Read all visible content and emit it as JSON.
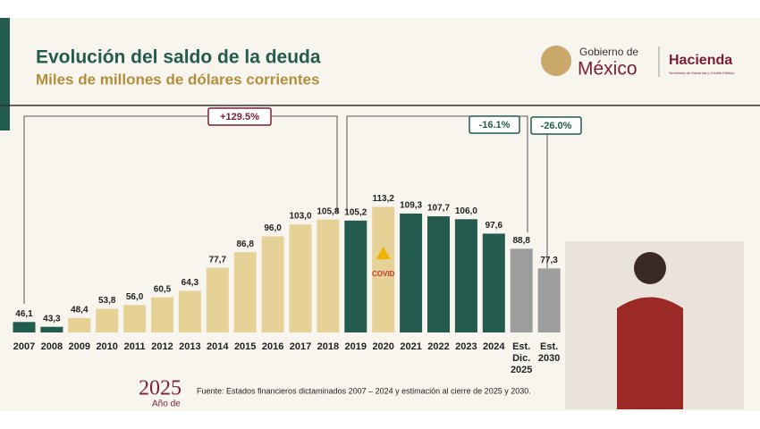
{
  "chart_data": {
    "type": "bar",
    "title": "Evolución del saldo de la deuda",
    "subtitle": "Miles de millones de dólares corrientes",
    "categories": [
      "2007",
      "2008",
      "2009",
      "2010",
      "2011",
      "2012",
      "2013",
      "2014",
      "2015",
      "2016",
      "2017",
      "2018",
      "2019",
      "2020",
      "2021",
      "2022",
      "2023",
      "2024",
      "Est. Dic. 2025",
      "Est. 2030"
    ],
    "values": [
      46.1,
      43.3,
      48.4,
      53.8,
      56.0,
      60.5,
      64.3,
      77.7,
      86.8,
      96.0,
      103.0,
      105.8,
      105.2,
      113.2,
      109.3,
      107.7,
      106.0,
      97.6,
      88.8,
      77.3
    ],
    "value_labels": [
      "46,1",
      "43,3",
      "48,4",
      "53,8",
      "56,0",
      "60,5",
      "64,3",
      "77,7",
      "86,8",
      "96,0",
      "103,0",
      "105,8",
      "105,2",
      "113,2",
      "109,3",
      "107,7",
      "106,0",
      "97,6",
      "88,8",
      "77,3"
    ],
    "colors": [
      "#235b4e",
      "#235b4e",
      "#e6d197",
      "#e6d197",
      "#e6d197",
      "#e6d197",
      "#e6d197",
      "#e6d197",
      "#e6d197",
      "#e6d197",
      "#e6d197",
      "#e6d197",
      "#235b4e",
      "#e6d197",
      "#235b4e",
      "#235b4e",
      "#235b4e",
      "#235b4e",
      "#9d9d9d",
      "#9d9d9d"
    ],
    "ylim": [
      40,
      115
    ],
    "annotations": [
      "+129.5%",
      "-16.1%",
      "-26.0%",
      "COVID"
    ],
    "source": "Fuente: Estados financieros dictaminados 2007 – 2024 y estimación al cierre de 2025 y 2030."
  },
  "branding": {
    "gov_line1": "Gobierno de",
    "gov_line2": "México",
    "ministry": "Hacienda",
    "ministry_sub": "Secretaría de Hacienda y Crédito Público",
    "year": "2025",
    "year_sub": "Año de"
  }
}
